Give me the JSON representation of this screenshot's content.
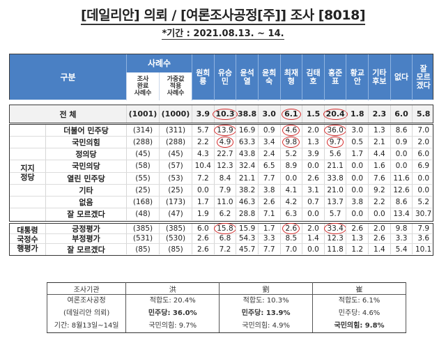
{
  "header": {
    "title": "[데일리안] 의뢰 / [여론조사공정[주]] 조사 [8018]",
    "period": "*기간 : 2021.08.13. ~ 14."
  },
  "table": {
    "col_header_group": "구분",
    "sample_header": "사례수",
    "sample_sub": [
      "조사\n완료\n사례수",
      "가중값\n적용\n사례수"
    ],
    "candidates": [
      "원희\n룡",
      "유승\n민",
      "윤석\n열",
      "윤희\n숙",
      "최재\n형",
      "김태\n호",
      "홍준\n표",
      "황교\n안",
      "기타\n후보",
      "없다",
      "잘\n모르\n겠다"
    ],
    "total": {
      "label": "전 체",
      "n_done": "(1001)",
      "n_weighted": "(1000)",
      "values": [
        "3.9",
        "10.3",
        "38.8",
        "3.0",
        "6.1",
        "1.5",
        "20.4",
        "1.8",
        "2.3",
        "6.0",
        "5.8"
      ]
    },
    "groups": [
      {
        "label": "지지\n정당",
        "rows": [
          {
            "label": "더불어 민주당",
            "n_done": "(314)",
            "n_weighted": "(311)",
            "values": [
              "5.7",
              "13.9",
              "16.9",
              "0.9",
              "4.6",
              "2.0",
              "36.0",
              "3.0",
              "1.3",
              "8.6",
              "7.0"
            ]
          },
          {
            "label": "국민의힘",
            "n_done": "(288)",
            "n_weighted": "(288)",
            "values": [
              "2.2",
              "4.9",
              "63.3",
              "3.4",
              "9.8",
              "1.3",
              "9.7",
              "0.5",
              "2.1",
              "0.9",
              "2.0"
            ]
          },
          {
            "label": "정의당",
            "n_done": "(45)",
            "n_weighted": "(45)",
            "values": [
              "4.3",
              "22.7",
              "43.8",
              "2.4",
              "5.2",
              "3.9",
              "5.6",
              "1.7",
              "4.4",
              "0.0",
              "6.0"
            ]
          },
          {
            "label": "국민의당",
            "n_done": "(58)",
            "n_weighted": "(57)",
            "values": [
              "10.4",
              "12.3",
              "32.4",
              "6.5",
              "8.9",
              "0.0",
              "21.1",
              "0.0",
              "1.6",
              "0.0",
              "6.9"
            ]
          },
          {
            "label": "열린 민주당",
            "n_done": "(55)",
            "n_weighted": "(53)",
            "values": [
              "7.2",
              "8.4",
              "21.1",
              "7.7",
              "0.0",
              "2.6",
              "33.8",
              "0.0",
              "7.6",
              "11.6",
              "0.0"
            ]
          },
          {
            "label": "기타",
            "n_done": "(25)",
            "n_weighted": "(25)",
            "values": [
              "0.0",
              "7.9",
              "38.2",
              "3.8",
              "4.1",
              "3.1",
              "21.0",
              "0.0",
              "9.2",
              "12.6",
              "0.0"
            ]
          },
          {
            "label": "없음",
            "n_done": "(168)",
            "n_weighted": "(173)",
            "values": [
              "1.7",
              "11.0",
              "46.3",
              "2.6",
              "4.2",
              "0.7",
              "13.7",
              "3.8",
              "2.2",
              "8.6",
              "5.2"
            ]
          },
          {
            "label": "잘 모르겠다",
            "n_done": "(48)",
            "n_weighted": "(47)",
            "values": [
              "1.9",
              "6.2",
              "28.8",
              "7.1",
              "6.3",
              "0.0",
              "5.7",
              "0.0",
              "0.0",
              "13.4",
              "30.7"
            ]
          }
        ]
      },
      {
        "label": "대통령\n국정수\n행평가",
        "rows": [
          {
            "label": "긍정평가",
            "n_done": "(385)",
            "n_weighted": "(385)",
            "values": [
              "6.0",
              "15.8",
              "15.9",
              "1.7",
              "2.6",
              "2.0",
              "33.4",
              "2.6",
              "2.0",
              "9.8",
              "7.9"
            ]
          },
          {
            "label": "부정평가",
            "n_done": "(531)",
            "n_weighted": "(530)",
            "values": [
              "2.6",
              "6.8",
              "54.3",
              "3.3",
              "8.5",
              "1.4",
              "12.3",
              "1.3",
              "2.6",
              "3.3",
              "3.6"
            ]
          },
          {
            "label": "잘 모르겠다",
            "n_done": "(85)",
            "n_weighted": "(85)",
            "values": [
              "2.6",
              "7.2",
              "45.7",
              "7.7",
              "7.0",
              "0.0",
              "11.8",
              "1.2",
              "1.4",
              "5.4",
              "10.1"
            ]
          }
        ]
      }
    ],
    "circled_columns": [
      1,
      4,
      6
    ],
    "colors": {
      "header_bg": "#4a80c4",
      "total_bg": "#f2f2f2",
      "circle": "#d42a2a"
    }
  },
  "summary": {
    "headers": [
      "조사기관",
      "洪",
      "劉",
      "崔"
    ],
    "rows": [
      [
        "여론조사공정",
        "적합도: 20.4%",
        "적합도: 10.3%",
        "적합도: 6.1%"
      ],
      [
        "(데일리안 의뢰)",
        "민주당: 36.0%",
        "민주당: 13.9%",
        "민주당: 4.6%"
      ],
      [
        "기간: 8월13일~14일",
        "국민의힘: 9.7%",
        "국민의힘: 4.9%",
        "국민의힘: 9.8%"
      ]
    ]
  }
}
